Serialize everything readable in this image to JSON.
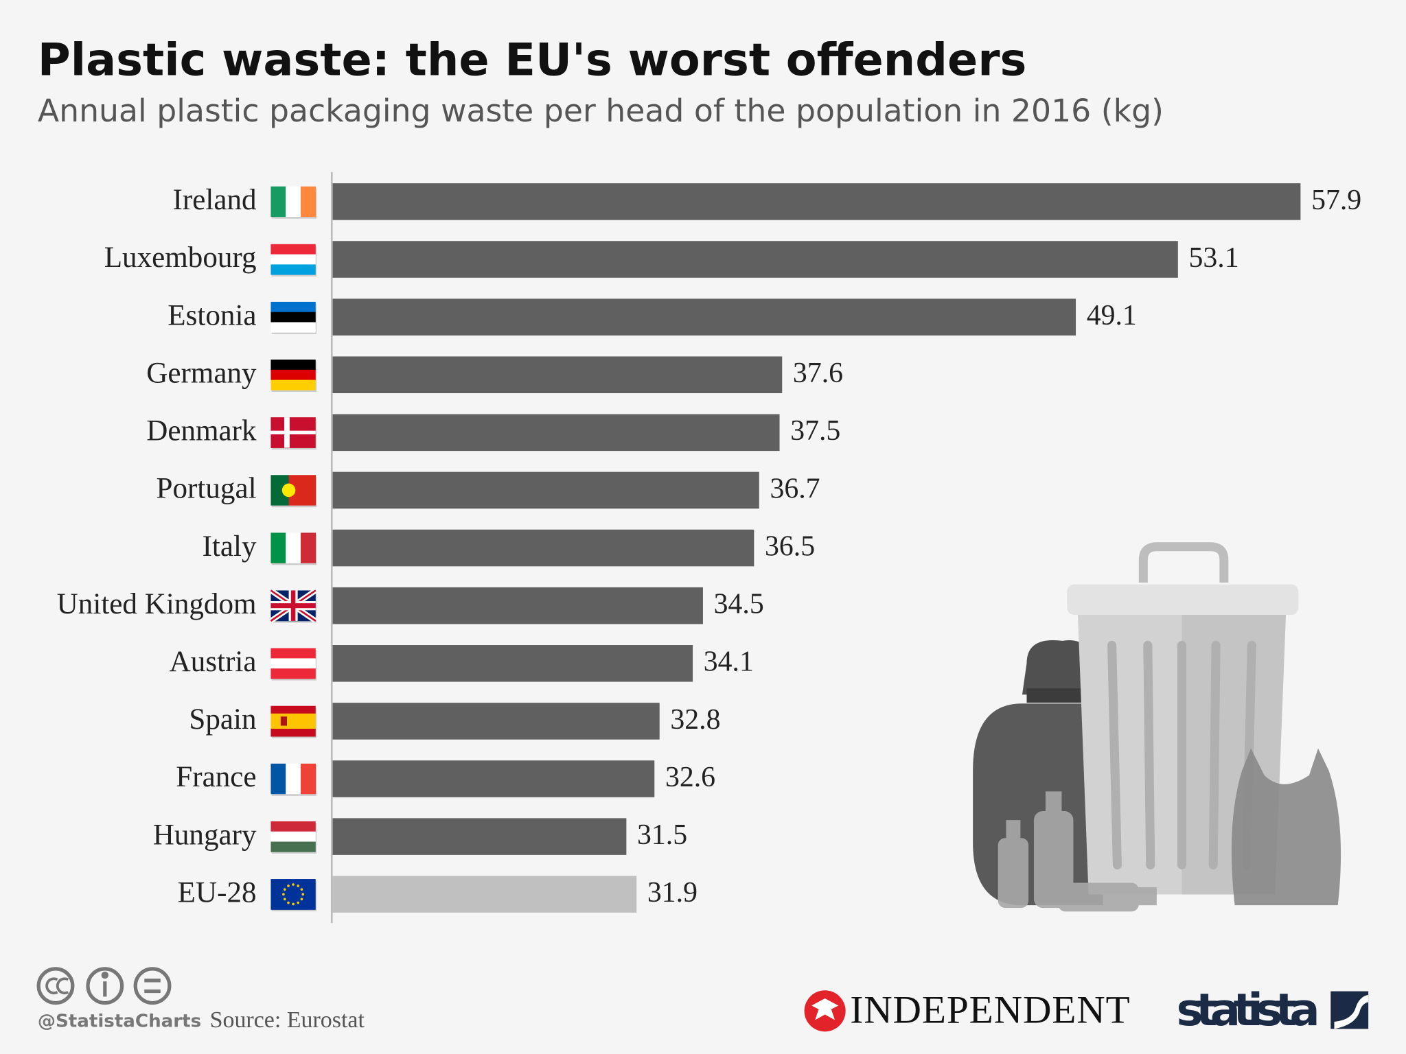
{
  "chart_data": {
    "type": "bar",
    "orientation": "horizontal",
    "title": "Plastic waste: the EU's worst offenders",
    "subtitle": "Annual plastic packaging waste per head of the population in 2016 (kg)",
    "categories": [
      "Ireland",
      "Luxembourg",
      "Estonia",
      "Germany",
      "Denmark",
      "Portugal",
      "Italy",
      "United Kingdom",
      "Austria",
      "Spain",
      "France",
      "Hungary",
      "EU-28"
    ],
    "values": [
      57.9,
      53.1,
      49.1,
      37.6,
      37.5,
      36.7,
      36.5,
      34.5,
      34.1,
      32.8,
      32.6,
      31.5,
      31.9
    ],
    "colors": [
      "#606060",
      "#606060",
      "#606060",
      "#606060",
      "#606060",
      "#606060",
      "#606060",
      "#606060",
      "#606060",
      "#606060",
      "#606060",
      "#606060",
      "#c0c0c0"
    ],
    "xlim": [
      20,
      60
    ],
    "handle": "@StatistaCharts",
    "source": "Source: Eurostat",
    "partner": "INDEPENDENT",
    "brand": "statista"
  }
}
